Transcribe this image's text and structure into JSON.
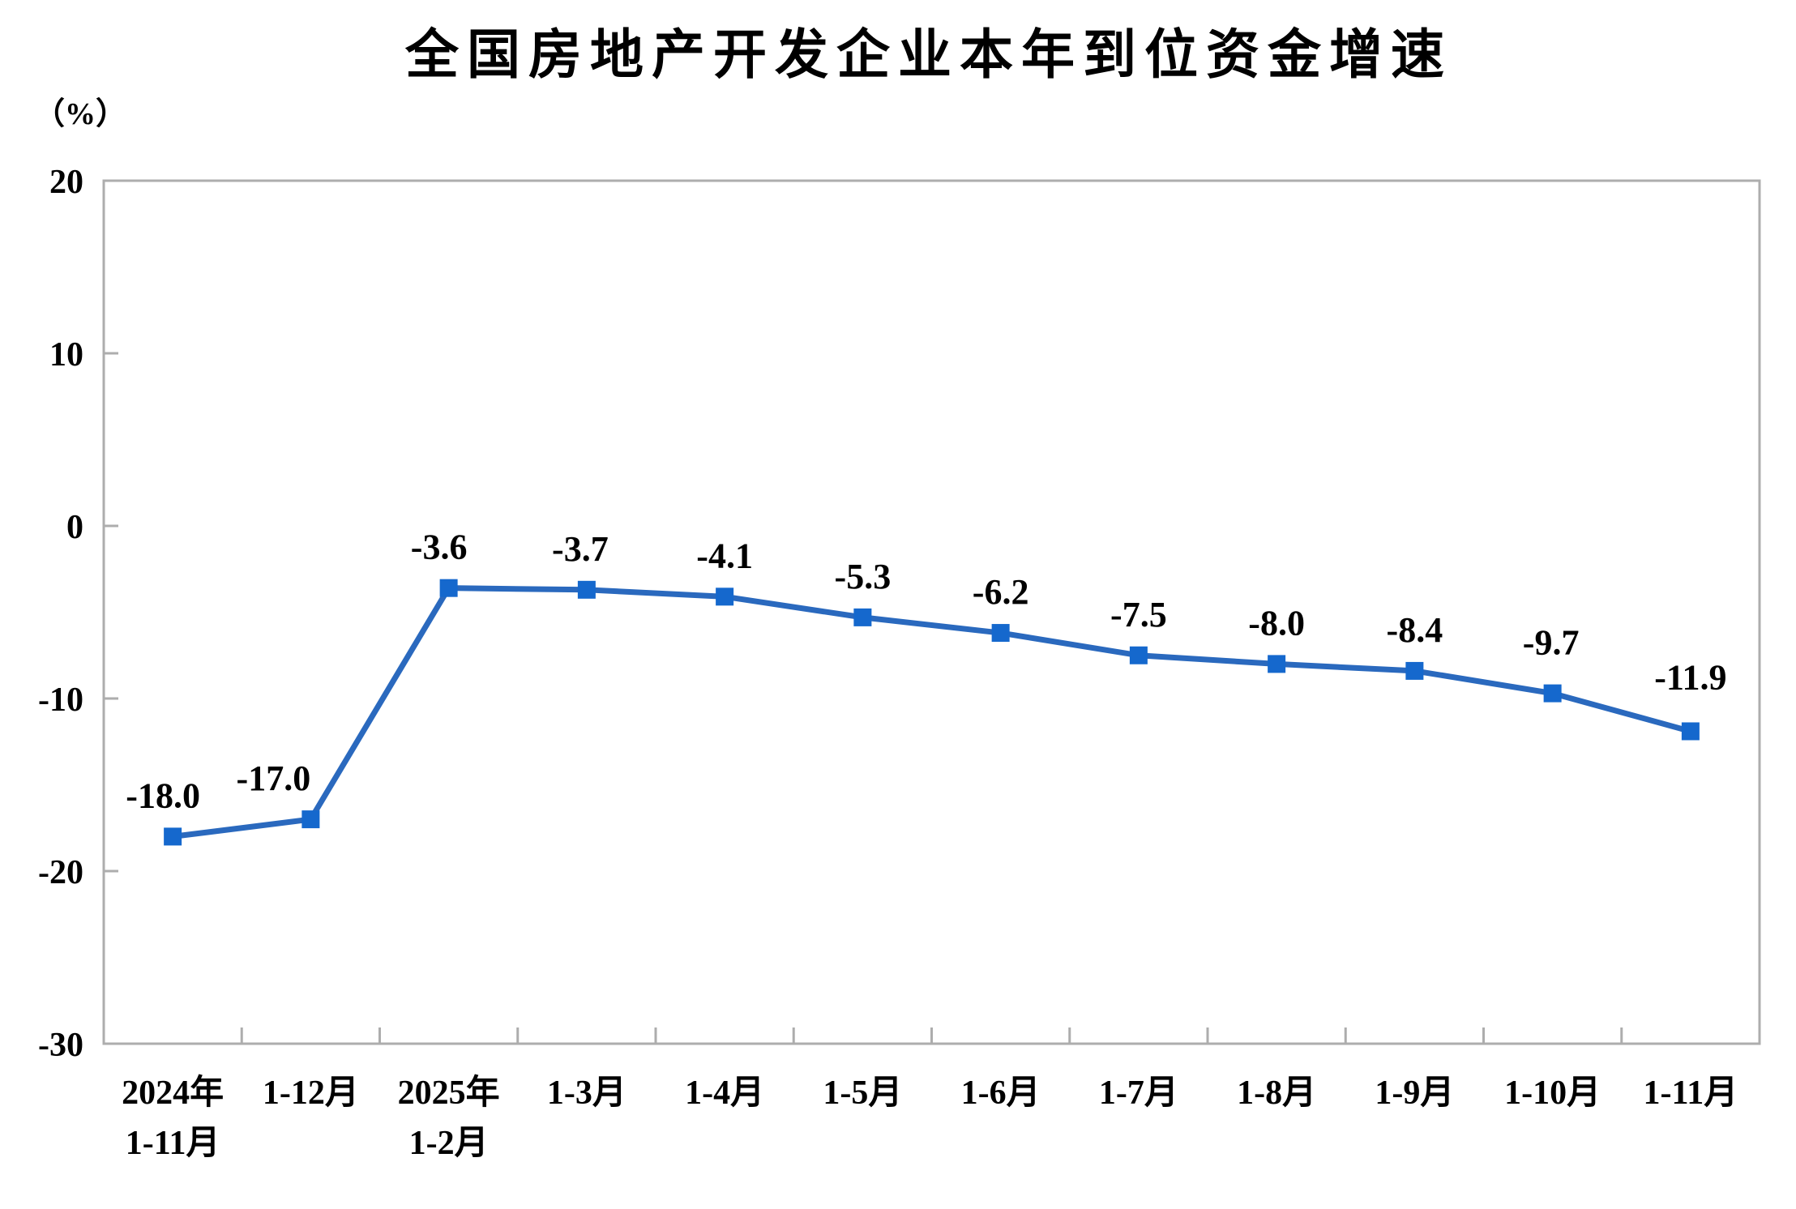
{
  "chart_data": {
    "type": "line",
    "title": "全国房地产开发企业本年到位资金增速",
    "unit_label": "（%）",
    "categories": [
      [
        "2024年",
        "1-11月"
      ],
      [
        "1-12月"
      ],
      [
        "2025年",
        "1-2月"
      ],
      [
        "1-3月"
      ],
      [
        "1-4月"
      ],
      [
        "1-5月"
      ],
      [
        "1-6月"
      ],
      [
        "1-7月"
      ],
      [
        "1-8月"
      ],
      [
        "1-9月"
      ],
      [
        "1-10月"
      ],
      [
        "1-11月"
      ]
    ],
    "values": [
      -18.0,
      -17.0,
      -3.6,
      -3.7,
      -4.1,
      -5.3,
      -6.2,
      -7.5,
      -8.0,
      -8.4,
      -9.7,
      -11.9
    ],
    "data_labels": [
      "-18.0",
      "-17.0",
      "-3.6",
      "-3.7",
      "-4.1",
      "-5.3",
      "-6.2",
      "-7.5",
      "-8.0",
      "-8.4",
      "-9.7",
      "-11.9"
    ],
    "y_ticks": [
      20,
      10,
      0,
      -10,
      -20,
      -30
    ],
    "y_tick_labels": [
      "20",
      "10",
      "0",
      "-10",
      "-20",
      "-30"
    ],
    "ylim": [
      -30,
      20
    ],
    "grid": false,
    "legend": "none",
    "series_name": "本年到位资金增速",
    "colors": {
      "line": "#2A69BE",
      "marker": "#1568CD",
      "axis": "#ADADAD",
      "text": "#000000",
      "background": "#FFFFFF"
    }
  }
}
